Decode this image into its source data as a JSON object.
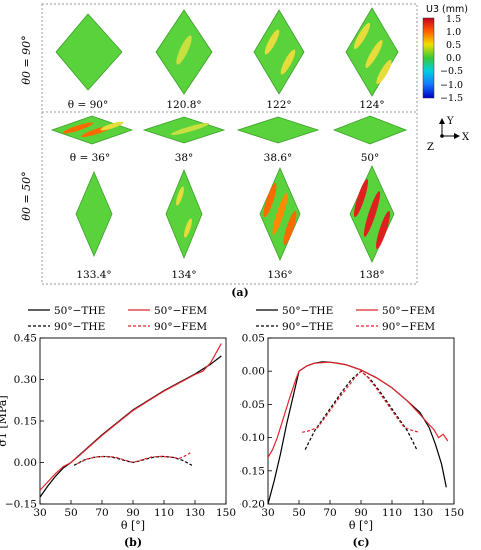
{
  "panel_a": {
    "row_labels": [
      "θ0 = 90°",
      "θ0 = 50°"
    ],
    "cell_labels": {
      "row1": [
        "θ = 90°",
        "120.8°",
        "122°",
        "124°"
      ],
      "row2": [
        "θ = 36°",
        "38°",
        "38.6°",
        "50°"
      ],
      "row3": [
        "133.4°",
        "134°",
        "136°",
        "138°"
      ]
    },
    "colorbar": {
      "title": "U3 (mm)",
      "ticks": [
        "1.5",
        "1.0",
        "0.5",
        "0.0",
        "−0.5",
        "−1.0",
        "−1.5"
      ]
    },
    "axes_triad": {
      "y": "Y",
      "x": "X",
      "z": "Z"
    },
    "caption": "(a)"
  },
  "legend": {
    "items": [
      "50°−THE",
      "50°−FEM",
      "90°−THE",
      "90°−FEM"
    ],
    "colors": {
      "THE": "#000000",
      "FEM": "#e3242b"
    }
  },
  "chart_data": [
    {
      "type": "line",
      "caption": "(b)",
      "xlabel": "θ [°]",
      "ylabel": "σ1 [MPa]",
      "xlim": [
        30,
        150
      ],
      "ylim": [
        -0.15,
        0.45
      ],
      "xticks": [
        30,
        50,
        70,
        90,
        110,
        130,
        150
      ],
      "yticks": [
        -0.15,
        0.0,
        0.15,
        0.3,
        0.45
      ],
      "ytick_labels": [
        "−0.15",
        "0.00",
        "0.15",
        "0.30",
        "0.45"
      ],
      "grid": false,
      "legend_position": "top",
      "series": [
        {
          "name": "50°−THE",
          "color": "#000000",
          "dash": "solid",
          "x": [
            30,
            35,
            40,
            45,
            50,
            55,
            60,
            70,
            80,
            90,
            100,
            110,
            120,
            130,
            140,
            147
          ],
          "y": [
            -0.125,
            -0.085,
            -0.05,
            -0.02,
            0.0,
            0.025,
            0.05,
            0.1,
            0.145,
            0.19,
            0.225,
            0.26,
            0.29,
            0.32,
            0.355,
            0.385
          ]
        },
        {
          "name": "50°−FEM",
          "color": "#e3242b",
          "dash": "solid",
          "x": [
            30,
            35,
            40,
            45,
            50,
            55,
            60,
            70,
            80,
            90,
            100,
            110,
            120,
            130,
            135,
            140,
            144,
            147
          ],
          "y": [
            -0.1,
            -0.07,
            -0.04,
            -0.015,
            0.0,
            0.023,
            0.048,
            0.098,
            0.143,
            0.188,
            0.223,
            0.258,
            0.288,
            0.318,
            0.33,
            0.36,
            0.4,
            0.43
          ]
        },
        {
          "name": "90°−THE",
          "color": "#000000",
          "dash": "dashed",
          "x": [
            52,
            58,
            64,
            70,
            76,
            82,
            86,
            90,
            94,
            98,
            104,
            110,
            116,
            122,
            128
          ],
          "y": [
            -0.01,
            0.008,
            0.018,
            0.022,
            0.02,
            0.012,
            0.005,
            0.0,
            0.005,
            0.012,
            0.02,
            0.022,
            0.018,
            0.008,
            -0.01
          ]
        },
        {
          "name": "90°−FEM",
          "color": "#e3242b",
          "dash": "dashed",
          "x": [
            54,
            60,
            66,
            72,
            78,
            84,
            90,
            96,
            102,
            108,
            114,
            120,
            124,
            127
          ],
          "y": [
            -0.005,
            0.012,
            0.02,
            0.022,
            0.02,
            0.01,
            0.0,
            0.01,
            0.02,
            0.022,
            0.02,
            0.015,
            0.025,
            0.035
          ]
        }
      ]
    },
    {
      "type": "line",
      "caption": "(c)",
      "xlabel": "θ [°]",
      "ylabel": "σ2 [MPa]",
      "xlim": [
        30,
        150
      ],
      "ylim": [
        -0.2,
        0.05
      ],
      "xticks": [
        30,
        50,
        70,
        90,
        110,
        130,
        150
      ],
      "yticks": [
        -0.2,
        -0.15,
        -0.1,
        -0.05,
        0.0,
        0.05
      ],
      "ytick_labels": [
        "−0.20",
        "−0.15",
        "−0.10",
        "−0.05",
        "0.00",
        "0.05"
      ],
      "grid": false,
      "legend_position": "top",
      "series": [
        {
          "name": "50°−THE",
          "color": "#000000",
          "dash": "solid",
          "x": [
            30,
            34,
            38,
            42,
            46,
            50,
            55,
            60,
            65,
            70,
            75,
            80,
            90,
            100,
            110,
            120,
            128,
            134,
            138,
            142,
            145
          ],
          "y": [
            -0.2,
            -0.165,
            -0.125,
            -0.08,
            -0.04,
            0.0,
            0.008,
            0.012,
            0.014,
            0.0135,
            0.012,
            0.01,
            0.002,
            -0.01,
            -0.025,
            -0.045,
            -0.062,
            -0.085,
            -0.11,
            -0.14,
            -0.175
          ]
        },
        {
          "name": "50°−FEM",
          "color": "#e3242b",
          "dash": "solid",
          "x": [
            30,
            33,
            36,
            40,
            44,
            48,
            50,
            55,
            60,
            70,
            80,
            90,
            100,
            110,
            120,
            128,
            133,
            137,
            140,
            143,
            146
          ],
          "y": [
            -0.13,
            -0.118,
            -0.1,
            -0.07,
            -0.04,
            -0.012,
            0.0,
            0.008,
            0.012,
            0.0135,
            0.01,
            0.002,
            -0.01,
            -0.025,
            -0.045,
            -0.065,
            -0.078,
            -0.088,
            -0.1,
            -0.095,
            -0.105
          ]
        },
        {
          "name": "90°−THE",
          "color": "#000000",
          "dash": "dashed",
          "x": [
            54,
            60,
            66,
            72,
            78,
            84,
            90,
            96,
            102,
            108,
            114,
            120,
            126
          ],
          "y": [
            -0.118,
            -0.09,
            -0.07,
            -0.05,
            -0.03,
            -0.012,
            0.0,
            -0.012,
            -0.03,
            -0.05,
            -0.07,
            -0.09,
            -0.118
          ]
        },
        {
          "name": "90°−FEM",
          "color": "#e3242b",
          "dash": "dashed",
          "x": [
            52,
            56,
            62,
            68,
            74,
            80,
            86,
            90,
            94,
            100,
            106,
            112,
            118,
            124,
            128
          ],
          "y": [
            -0.092,
            -0.09,
            -0.085,
            -0.066,
            -0.046,
            -0.028,
            -0.01,
            0.0,
            -0.008,
            -0.026,
            -0.046,
            -0.066,
            -0.085,
            -0.09,
            -0.092
          ]
        }
      ]
    }
  ]
}
